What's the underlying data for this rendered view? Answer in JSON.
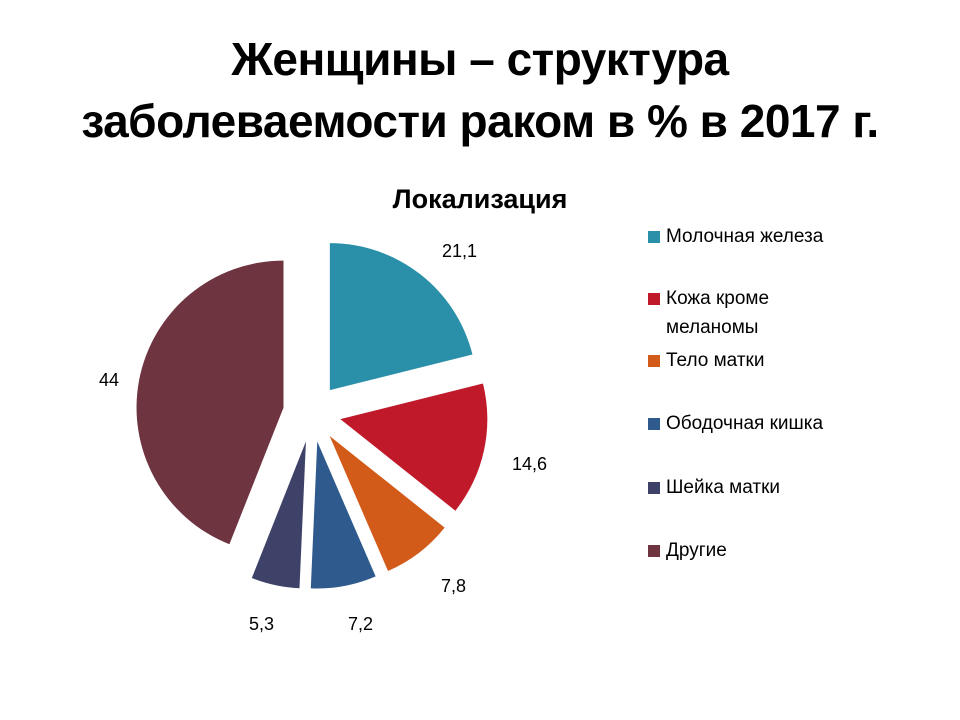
{
  "slide": {
    "title_line1": "Женщины – структура",
    "title_line2": "заболеваемости раком в % в 2017 г."
  },
  "chart_data": {
    "type": "pie",
    "exploded": true,
    "title": "Локализация",
    "categories": [
      "Молочная железа",
      "Кожа кроме меланомы",
      "Тело матки",
      "Ободочная кишка",
      "Шейка матки",
      "Другие"
    ],
    "values": [
      21.1,
      14.6,
      7.8,
      7.2,
      5.3,
      44
    ],
    "value_labels": [
      "21,1",
      "14,6",
      "7,8",
      "7,2",
      "5,3",
      "44"
    ],
    "colors": [
      "#2A8FA8",
      "#C0192A",
      "#D25B1A",
      "#2F5A8E",
      "#3E4168",
      "#6E3440"
    ],
    "legend_position": "right",
    "start_angle": "12 o'clock, clockwise"
  },
  "legend": {
    "items": [
      {
        "label": "Молочная железа",
        "color": "#2A8FA8"
      },
      {
        "label": "Кожа кроме меланомы",
        "color": "#C0192A"
      },
      {
        "label": "Тело матки",
        "color": "#D25B1A"
      },
      {
        "label": "Ободочная кишка",
        "color": "#2F5A8E"
      },
      {
        "label": "Шейка матки",
        "color": "#3E4168"
      },
      {
        "label": "Другие",
        "color": "#6E3440"
      }
    ]
  },
  "labels": [
    "21,1",
    "14,6",
    "7,8",
    "7,2",
    "5,3",
    "44"
  ]
}
